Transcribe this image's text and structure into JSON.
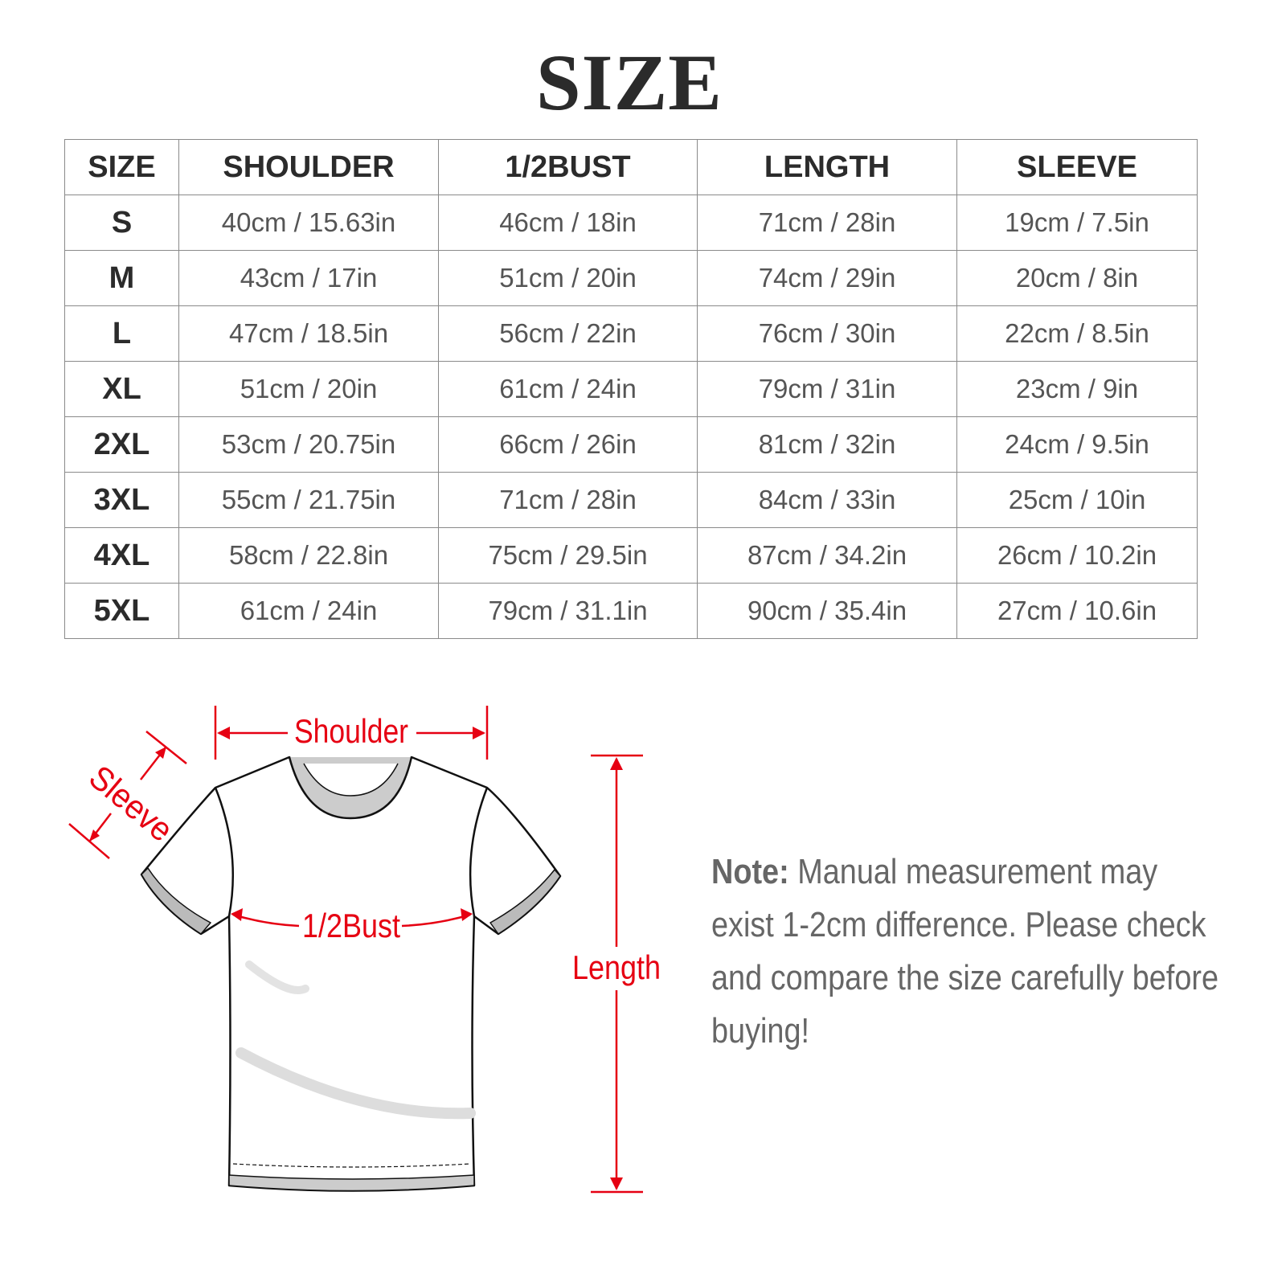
{
  "title": "SIZE",
  "table": {
    "headers": [
      "SIZE",
      "SHOULDER",
      "1/2BUST",
      "LENGTH",
      "SLEEVE"
    ],
    "rows": [
      [
        "S",
        "40cm / 15.63in",
        "46cm / 18in",
        "71cm / 28in",
        "19cm / 7.5in"
      ],
      [
        "M",
        "43cm / 17in",
        "51cm / 20in",
        "74cm / 29in",
        "20cm / 8in"
      ],
      [
        "L",
        "47cm / 18.5in",
        "56cm / 22in",
        "76cm / 30in",
        "22cm / 8.5in"
      ],
      [
        "XL",
        "51cm / 20in",
        "61cm / 24in",
        "79cm / 31in",
        "23cm / 9in"
      ],
      [
        "2XL",
        "53cm / 20.75in",
        "66cm / 26in",
        "81cm / 32in",
        "24cm / 9.5in"
      ],
      [
        "3XL",
        "55cm / 21.75in",
        "71cm / 28in",
        "84cm / 33in",
        "25cm / 10in"
      ],
      [
        "4XL",
        "58cm / 22.8in",
        "75cm / 29.5in",
        "87cm / 34.2in",
        "26cm / 10.2in"
      ],
      [
        "5XL",
        "61cm / 24in",
        "79cm / 31.1in",
        "90cm / 35.4in",
        "27cm / 10.6in"
      ]
    ]
  },
  "diagram": {
    "labels": {
      "shoulder": "Shoulder",
      "sleeve": "Sleeve",
      "bust": "1/2Bust",
      "length": "Length"
    },
    "accent_color": "#e60012"
  },
  "note": {
    "label": "Note:",
    "text": " Manual measurement may exist 1-2cm difference. Please check and compare the size carefully before buying!"
  }
}
